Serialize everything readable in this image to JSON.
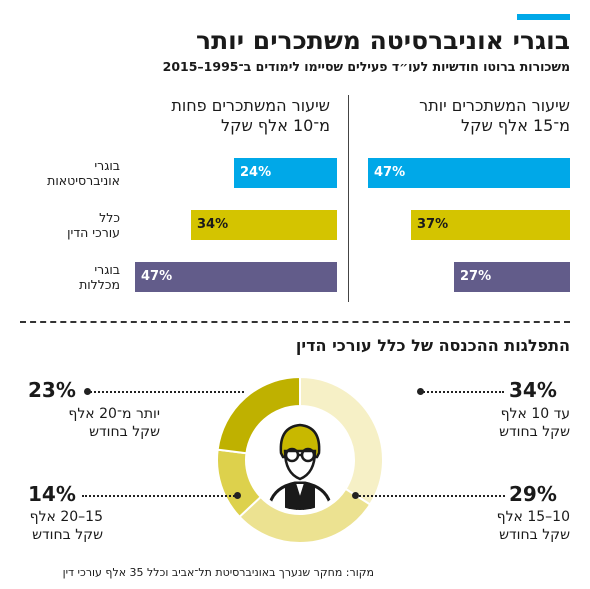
{
  "header": {
    "title": "בוגרי אוניברסיטה משתכרים יותר",
    "subtitle": "משכורות ברוטו חודשיות לעו״ד פעילים שסיימו לימודים ב־1995–2015"
  },
  "accent_color": "#00a8e8",
  "columns": {
    "right_heading_line1": "שיעור המשתכרים יותר",
    "right_heading_line2": "מ־15 אלף שקל",
    "left_heading_line1": "שיעור המשתכרים פחות",
    "left_heading_line2": "מ־10 אלף שקל"
  },
  "groups": [
    {
      "label_line1": "בוגרי",
      "label_line2": "אוניברסיטאות",
      "color": "#00a8e8",
      "text_color": "#ffffff",
      "above_15k_label": "47%",
      "below_10k_label": "24%"
    },
    {
      "label_line1": "כלל",
      "label_line2": "עורכי הדין",
      "color": "#d4c400",
      "text_color": "#1a1a1a",
      "above_15k_label": "37%",
      "below_10k_label": "34%"
    },
    {
      "label_line1": "בוגרי",
      "label_line2": "מכללות",
      "color": "#625c8a",
      "text_color": "#ffffff",
      "above_15k_label": "27%",
      "below_10k_label": "47%"
    }
  ],
  "distribution": {
    "title": "התפלגות ההכנסה של כלל עורכי הדין",
    "segments": [
      {
        "pct_label": "34%",
        "line1": "עד 10 אלף",
        "line2": "שקל בחודש",
        "color": "#f6f0c6"
      },
      {
        "pct_label": "29%",
        "line1": "10–15 אלף",
        "line2": "שקל בחודש",
        "color": "#ece291"
      },
      {
        "pct_label": "14%",
        "line1": "15–20 אלף",
        "line2": "שקל בחודש",
        "color": "#ddd14c"
      },
      {
        "pct_label": "23%",
        "line1": "יותר מ־20 אלף",
        "line2": "שקל בחודש",
        "color": "#bfb100"
      }
    ]
  },
  "chart_data": [
    {
      "type": "bar",
      "title": "שיעור המשתכרים יותר מ־15 אלף שקל",
      "categories": [
        "בוגרי אוניברסיטאות",
        "כלל עורכי הדין",
        "בוגרי מכללות"
      ],
      "values": [
        47,
        37,
        27
      ],
      "unit": "%",
      "ylim": [
        0,
        47
      ]
    },
    {
      "type": "bar",
      "title": "שיעור המשתכרים פחות מ־10 אלף שקל",
      "categories": [
        "בוגרי אוניברסיטאות",
        "כלל עורכי הדין",
        "בוגרי מכללות"
      ],
      "values": [
        24,
        34,
        47
      ],
      "unit": "%",
      "ylim": [
        0,
        47
      ]
    },
    {
      "type": "pie",
      "title": "התפלגות ההכנסה של כלל עורכי הדין",
      "categories": [
        "עד 10 אלף שקל בחודש",
        "10–15 אלף שקל בחודש",
        "15–20 אלף שקל בחודש",
        "יותר מ־20 אלף שקל בחודש"
      ],
      "values": [
        34,
        29,
        14,
        23
      ],
      "unit": "%"
    }
  ],
  "source": "מקור: מחקר שנערך באוניברסיטת תל־אביב וכלל 35 אלף עורכי דין"
}
